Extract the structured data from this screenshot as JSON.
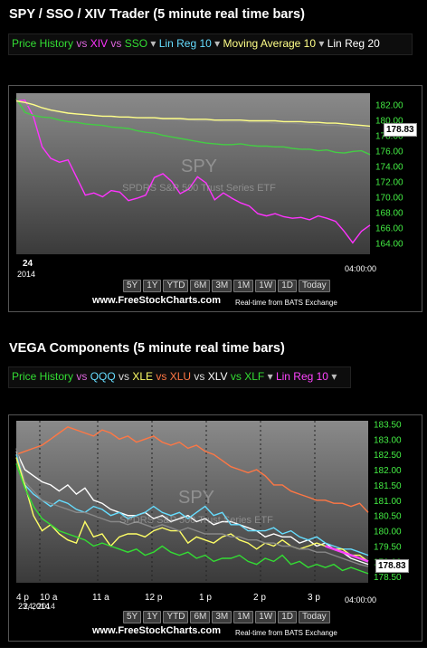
{
  "panel1": {
    "title": "SPY / SSO / XIV Trader (5 minute real time bars)",
    "legend": [
      {
        "text": "Price History",
        "color": "#33dd33"
      },
      {
        "text": " vs ",
        "color": "#dd66dd"
      },
      {
        "text": "XIV",
        "color": "#ff33ff"
      },
      {
        "text": " vs ",
        "color": "#dd66dd"
      },
      {
        "text": "SSO",
        "color": "#33dd33"
      },
      {
        "text": " ▾  ",
        "color": "#bbbbbb"
      },
      {
        "text": "Lin Reg 10",
        "color": "#66ddff"
      },
      {
        "text": " ▾  ",
        "color": "#bbbbbb"
      },
      {
        "text": "Moving Average 10",
        "color": "#ffff88"
      },
      {
        "text": " ▾  ",
        "color": "#bbbbbb"
      },
      {
        "text": "Lin Reg 20",
        "color": "#ffffff"
      }
    ],
    "watermark_symbol": "SPY",
    "watermark_name": "SPDRS S&P 500 Trust Series ETF",
    "date_label": "24",
    "year_label": "2014",
    "time_label": "04:00:00",
    "price_box": "178.83",
    "brand": "www.FreeStockCharts.com",
    "realtime": "Real-time from BATS Exchange",
    "timeframes": [
      "5Y",
      "1Y",
      "YTD",
      "6M",
      "3M",
      "1M",
      "1W",
      "1D",
      "Today"
    ]
  },
  "panel2": {
    "title": "VEGA Components (5 minute real time bars)",
    "legend": [
      {
        "text": "Price History",
        "color": "#33dd33"
      },
      {
        "text": " vs ",
        "color": "#dd66dd"
      },
      {
        "text": "QQQ",
        "color": "#66ddff"
      },
      {
        "text": " vs ",
        "color": "#dddddd"
      },
      {
        "text": "XLE",
        "color": "#ffff66"
      },
      {
        "text": " vs ",
        "color": "#ff7744"
      },
      {
        "text": "XLU",
        "color": "#ff7744"
      },
      {
        "text": " vs ",
        "color": "#dddddd"
      },
      {
        "text": "XLV",
        "color": "#ffffff"
      },
      {
        "text": " vs ",
        "color": "#33dd33"
      },
      {
        "text": "XLF",
        "color": "#33dd33"
      },
      {
        "text": " ▾  ",
        "color": "#bbbbbb"
      },
      {
        "text": "Lin Reg 10",
        "color": "#ff44ff"
      },
      {
        "text": " ▾",
        "color": "#bbbbbb"
      }
    ],
    "watermark_symbol": "SPY",
    "watermark_name": "SPDRS S&P 500 Trust Series ETF",
    "time_labels": [
      "4 p",
      "10 a",
      "11 a",
      "12 p",
      "1 p",
      "2 p",
      "3 p"
    ],
    "date_overlay": "23, 2014",
    "date_overlay2": "24, 2014",
    "time_label": "04:00:00",
    "price_box": "178.83",
    "brand": "www.FreeStockCharts.com",
    "realtime": "Real-time from BATS Exchange",
    "timeframes": [
      "5Y",
      "1Y",
      "YTD",
      "6M",
      "3M",
      "1M",
      "1W",
      "1D",
      "Today"
    ]
  },
  "chart_data": [
    {
      "type": "line",
      "title": "SPY / SSO / XIV Trader (5 minute real time bars)",
      "y_ticks": [
        164.0,
        166.0,
        168.0,
        170.0,
        172.0,
        174.0,
        176.0,
        178.0,
        180.0,
        182.0
      ],
      "ylim": [
        162.5,
        183.5
      ],
      "x_labels": [
        "24",
        "04:00:00"
      ],
      "current_value": 178.83,
      "x": [
        0,
        2,
        4,
        6,
        8,
        10,
        12,
        14,
        16,
        18,
        20,
        22,
        24,
        26,
        28,
        30,
        32,
        34,
        36,
        38,
        40,
        42,
        44,
        46,
        48,
        50,
        52,
        54,
        56,
        58,
        60,
        62,
        64,
        66,
        68,
        70,
        72,
        74,
        76,
        78,
        80,
        82
      ],
      "series": [
        {
          "name": "XIV",
          "color": "#ff33ff",
          "values": [
            182.5,
            182.6,
            180.4,
            176.5,
            175.0,
            174.5,
            174.8,
            172.5,
            170.2,
            170.5,
            170.0,
            170.8,
            170.6,
            169.5,
            169.8,
            170.2,
            172.5,
            173.0,
            172.0,
            170.4,
            171.0,
            172.6,
            171.8,
            169.6,
            170.5,
            169.8,
            169.2,
            168.8,
            167.8,
            167.5,
            167.8,
            167.4,
            167.2,
            167.3,
            167.0,
            167.5,
            167.2,
            166.8,
            165.5,
            164.0,
            165.5,
            166.3
          ]
        },
        {
          "name": "SSO",
          "color": "#44cc44",
          "values": [
            182.8,
            181.0,
            180.6,
            180.4,
            180.3,
            180.0,
            179.8,
            179.7,
            179.5,
            179.4,
            179.3,
            179.1,
            179.0,
            178.9,
            178.6,
            178.4,
            178.3,
            178.0,
            177.8,
            177.6,
            177.4,
            177.2,
            177.0,
            176.9,
            176.8,
            176.8,
            176.9,
            176.7,
            176.6,
            176.6,
            176.5,
            176.5,
            176.3,
            176.2,
            176.2,
            176.0,
            176.1,
            175.8,
            175.7,
            175.9,
            176.0,
            175.5
          ]
        },
        {
          "name": "Price History",
          "color": "#888888",
          "values": [
            182.7,
            182.0,
            181.8,
            181.4,
            181.2,
            181.0,
            180.9,
            180.8,
            180.7,
            180.6,
            180.5,
            180.4,
            180.4,
            180.3,
            180.3,
            180.2,
            180.2,
            180.1,
            180.1,
            180.0,
            180.0,
            179.9,
            179.9,
            179.9,
            179.8,
            179.8,
            179.8,
            179.7,
            179.7,
            179.7,
            179.6,
            179.6,
            179.6,
            179.5,
            179.5,
            179.4,
            179.3,
            179.3,
            179.2,
            179.1,
            179.0,
            178.83
          ]
        },
        {
          "name": "Moving Average 10",
          "color": "#ffff88",
          "values": [
            182.5,
            182.3,
            182.0,
            181.6,
            181.3,
            181.1,
            180.9,
            180.8,
            180.7,
            180.6,
            180.5,
            180.5,
            180.4,
            180.4,
            180.3,
            180.3,
            180.3,
            180.2,
            180.2,
            180.2,
            180.1,
            180.1,
            180.1,
            180.0,
            180.0,
            180.0,
            180.0,
            179.9,
            179.9,
            179.9,
            179.9,
            179.8,
            179.8,
            179.8,
            179.7,
            179.7,
            179.6,
            179.6,
            179.5,
            179.4,
            179.3,
            179.2
          ]
        }
      ]
    },
    {
      "type": "line",
      "title": "VEGA Components (5 minute real time bars)",
      "y_ticks": [
        178.5,
        179.0,
        179.5,
        180.0,
        180.5,
        181.0,
        181.5,
        182.0,
        182.5,
        183.0,
        183.5
      ],
      "ylim": [
        178.3,
        183.6
      ],
      "x_labels": [
        "4 p",
        "10 a",
        "11 a",
        "12 p",
        "1 p",
        "2 p",
        "3 p",
        "04:00:00"
      ],
      "current_value": 178.83,
      "x": [
        0,
        2,
        4,
        6,
        8,
        10,
        12,
        14,
        16,
        18,
        20,
        22,
        24,
        26,
        28,
        30,
        32,
        34,
        36,
        38,
        40,
        42,
        44,
        46,
        48,
        50,
        52,
        54,
        56,
        58,
        60,
        62,
        64,
        66,
        68,
        70,
        72,
        74,
        76,
        78,
        80,
        82
      ],
      "series": [
        {
          "name": "XLU",
          "color": "#ff7744",
          "values": [
            182.5,
            182.6,
            182.7,
            182.8,
            183.0,
            183.2,
            183.4,
            183.3,
            183.2,
            183.1,
            183.3,
            183.2,
            183.0,
            183.1,
            182.9,
            183.0,
            183.1,
            182.9,
            182.8,
            182.9,
            182.7,
            182.8,
            182.6,
            182.5,
            182.3,
            182.1,
            182.0,
            181.9,
            182.0,
            181.8,
            181.5,
            181.5,
            181.3,
            181.2,
            181.1,
            181.0,
            181.0,
            180.9,
            180.9,
            180.8,
            180.9,
            180.6
          ]
        },
        {
          "name": "XLV",
          "color": "#ffffff",
          "values": [
            182.6,
            182.0,
            181.8,
            181.6,
            181.5,
            181.3,
            181.5,
            181.2,
            181.4,
            181.0,
            180.9,
            180.7,
            180.6,
            180.5,
            180.5,
            180.6,
            180.4,
            180.5,
            180.3,
            180.4,
            180.5,
            180.3,
            180.4,
            180.2,
            180.3,
            180.3,
            180.2,
            180.1,
            180.0,
            179.8,
            179.9,
            179.8,
            179.8,
            179.6,
            179.7,
            179.5,
            179.6,
            179.4,
            179.3,
            179.1,
            179.0,
            178.9
          ]
        },
        {
          "name": "QQQ",
          "color": "#66ddff",
          "values": [
            182.5,
            181.5,
            181.2,
            181.0,
            180.8,
            181.0,
            180.9,
            180.7,
            180.6,
            180.8,
            180.7,
            180.5,
            180.6,
            180.4,
            180.5,
            180.6,
            180.8,
            180.6,
            180.5,
            180.6,
            180.4,
            180.6,
            180.8,
            180.5,
            180.6,
            180.2,
            180.2,
            180.0,
            180.0,
            180.0,
            180.1,
            179.9,
            180.0,
            179.8,
            179.7,
            179.8,
            179.6,
            179.5,
            179.4,
            179.4,
            179.3,
            179.2
          ]
        },
        {
          "name": "XLE",
          "color": "#ffff66",
          "values": [
            182.4,
            181.5,
            180.5,
            180.0,
            180.2,
            179.9,
            179.7,
            179.6,
            180.3,
            179.8,
            179.9,
            179.5,
            179.8,
            179.9,
            179.9,
            179.8,
            180.0,
            180.1,
            180.0,
            180.0,
            179.6,
            179.8,
            179.7,
            179.6,
            179.8,
            179.9,
            179.7,
            179.6,
            179.4,
            179.6,
            179.5,
            179.7,
            179.5,
            179.4,
            179.5,
            179.6,
            179.5,
            179.4,
            179.4,
            179.2,
            179.2,
            179.0
          ]
        },
        {
          "name": "XLF",
          "color": "#33dd33",
          "values": [
            182.2,
            181.4,
            180.8,
            180.4,
            180.2,
            180.0,
            179.9,
            179.8,
            179.7,
            179.5,
            179.6,
            179.5,
            179.4,
            179.3,
            179.4,
            179.2,
            179.3,
            179.5,
            179.3,
            179.2,
            179.3,
            179.1,
            179.2,
            179.0,
            179.1,
            179.1,
            179.2,
            179.0,
            178.9,
            179.1,
            179.0,
            179.2,
            178.9,
            179.0,
            178.8,
            178.9,
            178.8,
            178.9,
            178.7,
            178.8,
            178.7,
            178.6
          ]
        },
        {
          "name": "Price History",
          "color": "#888888",
          "values": [
            182.7,
            181.6,
            181.3,
            181.0,
            180.9,
            180.8,
            180.7,
            180.6,
            180.6,
            180.5,
            180.4,
            180.3,
            180.3,
            180.2,
            180.3,
            180.2,
            180.1,
            180.2,
            180.1,
            180.0,
            180.1,
            180.0,
            179.9,
            179.9,
            179.9,
            179.8,
            179.8,
            179.7,
            179.7,
            179.6,
            179.6,
            179.5,
            179.5,
            179.4,
            179.4,
            179.3,
            179.3,
            179.2,
            179.1,
            179.0,
            178.9,
            178.83
          ]
        },
        {
          "name": "Lin Reg 10",
          "color": "#ff44ff",
          "values": [
            null,
            null,
            null,
            null,
            null,
            null,
            null,
            null,
            null,
            null,
            null,
            null,
            null,
            null,
            null,
            null,
            null,
            null,
            null,
            null,
            null,
            null,
            null,
            null,
            null,
            null,
            null,
            null,
            null,
            null,
            null,
            null,
            null,
            null,
            null,
            null,
            179.5,
            179.4,
            179.3,
            179.2,
            179.1,
            179.0
          ]
        }
      ]
    }
  ]
}
